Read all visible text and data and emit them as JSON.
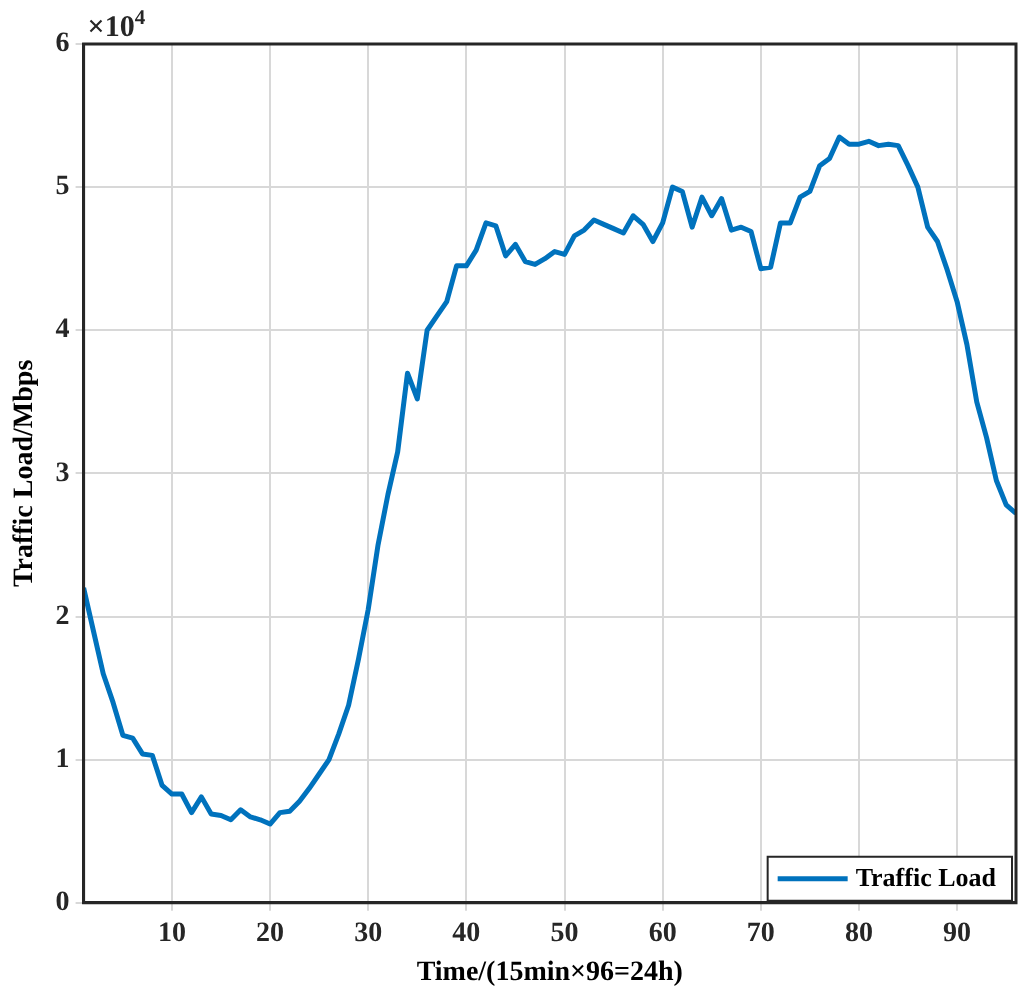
{
  "chart_data": {
    "type": "line",
    "xlabel": "Time/(15min×96=24h)",
    "ylabel": "Traffic Load/Mbps",
    "annotations": [
      "×10$^{4}$"
    ],
    "x": [
      1,
      2,
      3,
      4,
      5,
      6,
      7,
      8,
      9,
      10,
      11,
      12,
      13,
      14,
      15,
      16,
      17,
      18,
      19,
      20,
      21,
      22,
      23,
      24,
      25,
      26,
      27,
      28,
      29,
      30,
      31,
      32,
      33,
      34,
      35,
      36,
      37,
      38,
      39,
      40,
      41,
      42,
      43,
      44,
      45,
      46,
      47,
      48,
      49,
      50,
      51,
      52,
      53,
      54,
      55,
      56,
      57,
      58,
      59,
      60,
      61,
      62,
      63,
      64,
      65,
      66,
      67,
      68,
      69,
      70,
      71,
      72,
      73,
      74,
      75,
      76,
      77,
      78,
      79,
      80,
      81,
      82,
      83,
      84,
      85,
      86,
      87,
      88,
      89,
      90,
      91,
      92,
      93,
      94,
      95,
      96
    ],
    "series": [
      {
        "name": "Traffic Load",
        "color": "#0072bd",
        "values": [
          2.2,
          1.9,
          1.6,
          1.4,
          1.17,
          1.15,
          1.04,
          1.03,
          0.82,
          0.76,
          0.76,
          0.63,
          0.74,
          0.62,
          0.61,
          0.58,
          0.65,
          0.6,
          0.58,
          0.55,
          0.63,
          0.64,
          0.71,
          0.8,
          0.9,
          1.0,
          1.18,
          1.38,
          1.7,
          2.05,
          2.5,
          2.85,
          3.15,
          3.7,
          3.52,
          4.0,
          4.1,
          4.2,
          4.45,
          4.45,
          4.56,
          4.75,
          4.73,
          4.52,
          4.6,
          4.48,
          4.46,
          4.5,
          4.55,
          4.53,
          4.66,
          4.7,
          4.77,
          4.74,
          4.71,
          4.68,
          4.8,
          4.74,
          4.62,
          4.75,
          5.0,
          4.97,
          4.72,
          4.93,
          4.8,
          4.92,
          4.7,
          4.72,
          4.69,
          4.43,
          4.44,
          4.75,
          4.75,
          4.93,
          4.97,
          5.15,
          5.2,
          5.35,
          5.3,
          5.3,
          5.32,
          5.29,
          5.3,
          5.29,
          5.15,
          5.0,
          4.72,
          4.62,
          4.42,
          4.2,
          3.9,
          3.5,
          3.25,
          2.95,
          2.78,
          2.72
        ]
      }
    ],
    "xlim": [
      1,
      96
    ],
    "xticks": [
      10,
      20,
      30,
      40,
      50,
      60,
      70,
      80,
      90
    ],
    "ylim": [
      0,
      6
    ],
    "yticks": [
      0,
      1,
      2,
      3,
      4,
      5,
      6
    ],
    "grid": true,
    "legend": "bottom right",
    "marker": "none",
    "line_style": "solid"
  }
}
